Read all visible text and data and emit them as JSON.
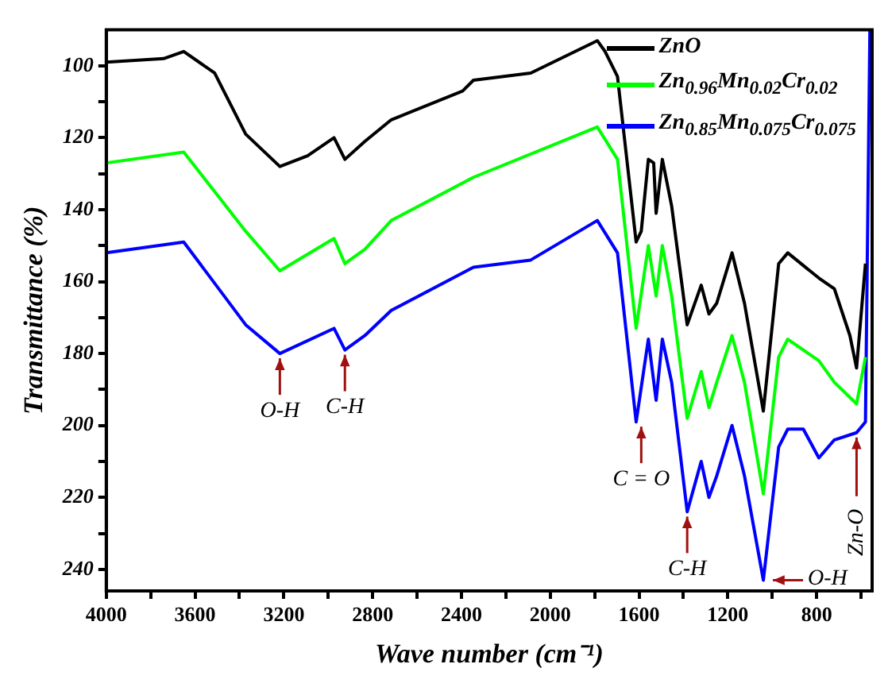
{
  "chart_data": {
    "type": "line",
    "xlabel": "Wave number (cm⁻¹)",
    "ylabel": "Transmittance (%)",
    "xlim": [
      4000,
      550
    ],
    "ylim": [
      246,
      90
    ],
    "xticks": [
      4000,
      {
        "value": 3800,
        "label": null
      },
      3600,
      {
        "value": 3400,
        "label": null
      },
      3200,
      {
        "value": 3000,
        "label": null
      },
      2800,
      {
        "value": 2600,
        "label": null
      },
      2400,
      {
        "value": 2200,
        "label": null
      },
      2000,
      {
        "value": 1800,
        "label": null
      },
      1600,
      {
        "value": 1400,
        "label": null
      },
      1200,
      {
        "value": 1000,
        "label": null
      },
      800,
      {
        "value": 600,
        "label": null
      }
    ],
    "yticks": [
      100,
      {
        "value": 110,
        "label": null
      },
      120,
      {
        "value": 130,
        "label": null
      },
      140,
      {
        "value": 150,
        "label": null
      },
      160,
      {
        "value": 170,
        "label": null
      },
      180,
      {
        "value": 190,
        "label": null
      },
      200,
      {
        "value": 210,
        "label": null
      },
      220,
      {
        "value": 230,
        "label": null
      },
      240
    ],
    "legend": "top right",
    "marker": "none",
    "line_style": "solid",
    "series": [
      {
        "name": "ZnO",
        "color": "#000000",
        "x": [
          4000,
          3742,
          3651,
          3512,
          3372,
          3218,
          3093,
          2974,
          2925,
          2835,
          2716,
          2395,
          2346,
          2088,
          1788,
          1753,
          1697,
          1613,
          1590,
          1558,
          1534,
          1523,
          1495,
          1453,
          1383,
          1320,
          1285,
          1250,
          1181,
          1125,
          1040,
          971,
          930,
          790,
          720,
          650,
          620,
          580
        ],
        "values": [
          99,
          98,
          96,
          102,
          119,
          128,
          125,
          120,
          126,
          121,
          115,
          107,
          104,
          102,
          93,
          96,
          103,
          149,
          146,
          126,
          127,
          141,
          126,
          139,
          172,
          161,
          169,
          166,
          152,
          166,
          196,
          155,
          152,
          159,
          162,
          175,
          184,
          155
        ]
      },
      {
        "name": "Zn$_{0.96}$Mn$_{0.02}$Cr$_{0.02}$",
        "color": "#00ff00",
        "x": [
          4000,
          3651,
          3372,
          3218,
          2974,
          2925,
          2835,
          2716,
          2346,
          1788,
          1697,
          1613,
          1558,
          1523,
          1495,
          1453,
          1383,
          1320,
          1285,
          1250,
          1181,
          1125,
          1040,
          971,
          930,
          790,
          720,
          620,
          580
        ],
        "values": [
          127,
          124,
          146,
          157,
          148,
          155,
          151,
          143,
          131,
          117,
          126,
          173,
          150,
          164,
          150,
          164,
          198,
          185,
          195,
          188,
          175,
          188,
          219,
          181,
          176,
          182,
          188,
          194,
          181
        ]
      },
      {
        "name": "Zn$_{0.85}$Mn$_{0.075}$Cr$_{0.075}$",
        "color": "#0000ff",
        "x": [
          4000,
          3651,
          3372,
          3218,
          2974,
          2925,
          2835,
          2716,
          2346,
          2088,
          1788,
          1697,
          1613,
          1558,
          1523,
          1495,
          1453,
          1383,
          1320,
          1285,
          1250,
          1181,
          1125,
          1040,
          971,
          930,
          860,
          790,
          720,
          620,
          580,
          560
        ],
        "values": [
          152,
          149,
          172,
          180,
          173,
          179,
          175,
          168,
          156,
          154,
          143,
          152,
          199,
          176,
          193,
          176,
          188,
          224,
          210,
          220,
          214,
          200,
          214,
          243,
          206,
          201,
          201,
          209,
          204,
          202,
          199,
          90
        ]
      }
    ],
    "annotations": [
      {
        "text": "O-H",
        "x": 3218,
        "y": 180
      },
      {
        "text": "C-H",
        "x": 2925,
        "y": 179
      },
      {
        "text": "C = O",
        "x": 1590,
        "y": 199
      },
      {
        "text": "C-H",
        "x": 1383,
        "y": 224
      },
      {
        "text": "O-H",
        "x": 1040,
        "y": 243
      },
      {
        "text": "Zn-O",
        "x": 620,
        "y": 202
      }
    ]
  }
}
